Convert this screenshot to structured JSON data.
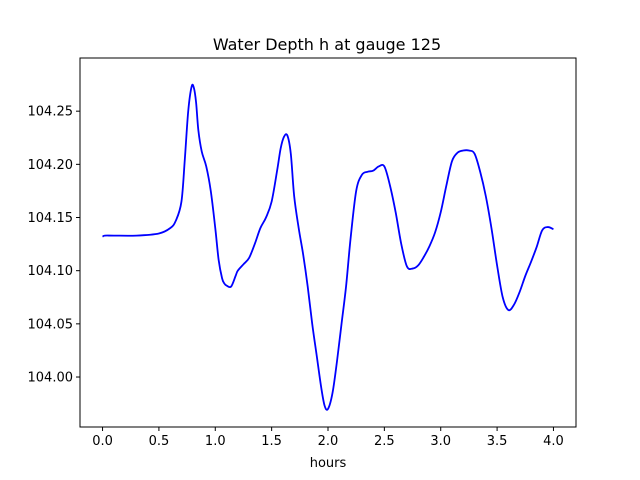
{
  "chart_data": {
    "type": "line",
    "title": "Water Depth h at gauge 125",
    "xlabel": "hours",
    "ylabel": "",
    "xlim": [
      -0.2,
      4.2
    ],
    "ylim": [
      103.953,
      104.3
    ],
    "grid": false,
    "x_ticks": [
      "0.0",
      "0.5",
      "1.0",
      "1.5",
      "2.0",
      "2.5",
      "3.0",
      "3.5",
      "4.0"
    ],
    "y_ticks": [
      "104.00",
      "104.05",
      "104.10",
      "104.15",
      "104.20",
      "104.25"
    ],
    "series": [
      {
        "color": "#0000ff",
        "x": [
          0.0,
          0.02,
          0.1,
          0.3,
          0.5,
          0.6,
          0.65,
          0.7,
          0.73,
          0.76,
          0.79,
          0.81,
          0.83,
          0.85,
          0.88,
          0.92,
          0.96,
          1.0,
          1.03,
          1.06,
          1.08,
          1.1,
          1.14,
          1.18,
          1.2,
          1.25,
          1.3,
          1.35,
          1.4,
          1.45,
          1.5,
          1.55,
          1.58,
          1.61,
          1.64,
          1.67,
          1.7,
          1.74,
          1.78,
          1.82,
          1.86,
          1.9,
          1.94,
          1.97,
          2.0,
          2.04,
          2.08,
          2.12,
          2.16,
          2.2,
          2.25,
          2.3,
          2.35,
          2.4,
          2.45,
          2.5,
          2.55,
          2.6,
          2.65,
          2.7,
          2.75,
          2.8,
          2.85,
          2.9,
          2.95,
          3.0,
          3.05,
          3.1,
          3.15,
          3.2,
          3.25,
          3.3,
          3.35,
          3.4,
          3.45,
          3.5,
          3.55,
          3.6,
          3.65,
          3.7,
          3.75,
          3.8,
          3.85,
          3.9,
          3.95,
          4.0
        ],
        "y": [
          104.132,
          104.133,
          104.133,
          104.133,
          104.135,
          104.14,
          104.147,
          104.165,
          104.205,
          104.25,
          104.273,
          104.272,
          104.258,
          104.232,
          104.212,
          104.198,
          104.175,
          104.14,
          104.11,
          104.093,
          104.088,
          104.086,
          104.085,
          104.095,
          104.1,
          104.106,
          104.112,
          104.125,
          104.14,
          104.15,
          104.165,
          104.195,
          104.215,
          104.226,
          104.227,
          104.21,
          104.17,
          104.14,
          104.115,
          104.085,
          104.05,
          104.02,
          103.99,
          103.973,
          103.97,
          103.985,
          104.015,
          104.05,
          104.085,
          104.13,
          104.175,
          104.19,
          104.193,
          104.194,
          104.198,
          104.198,
          104.18,
          104.155,
          104.125,
          104.104,
          104.102,
          104.105,
          104.113,
          104.123,
          104.136,
          104.155,
          104.18,
          104.203,
          104.211,
          104.213,
          104.213,
          104.21,
          104.193,
          104.17,
          104.14,
          104.105,
          104.075,
          104.063,
          104.068,
          104.08,
          104.095,
          104.108,
          104.122,
          104.138,
          104.141,
          104.139
        ]
      }
    ]
  }
}
